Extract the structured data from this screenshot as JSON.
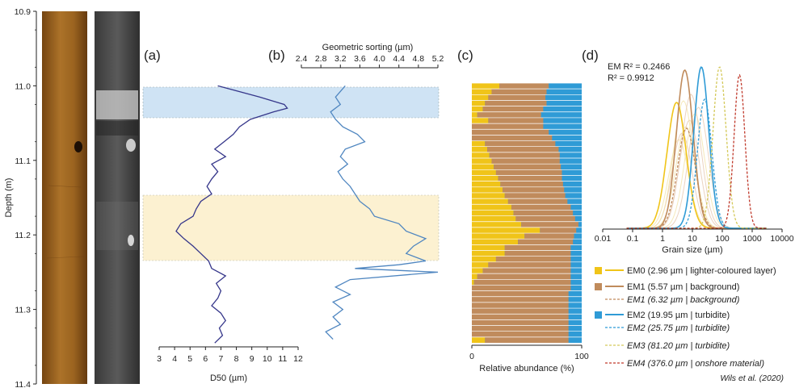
{
  "labels": {
    "a": "(a)",
    "b": "(b)",
    "c": "(c)",
    "d": "(d)"
  },
  "citation": "Wils et al. (2020)",
  "stats": {
    "em_r2": "EM R² = 0.2466",
    "r2": "R² = 0.9912"
  },
  "colors": {
    "d50": "#35368a",
    "sorting": "#4f86c0",
    "em0": "#f0c419",
    "em1": "#c08b5c",
    "em2": "#2f9bd6",
    "em3": "#d4c95a",
    "em4": "#c0392b",
    "blue_band": "#cfe3f4",
    "yellow_band": "#fcf1d1"
  },
  "chart_data": [
    {
      "type": "line",
      "panel": "a",
      "title": "",
      "xlabel": "D50 (µm)",
      "ylabel": "Depth (m)",
      "xlim": [
        3,
        12
      ],
      "ylim": [
        11.4,
        10.9
      ],
      "xticks": [
        3,
        4,
        5,
        6,
        7,
        8,
        9,
        10,
        11,
        12
      ],
      "yticks": [
        10.9,
        11.0,
        11.1,
        11.2,
        11.3,
        11.4
      ],
      "ytick_labels": [
        "10.9",
        "11.0",
        "11.1",
        "11.2",
        "11.3",
        "11.4"
      ],
      "highlight_bands": [
        {
          "from": 11.0,
          "to": 11.04,
          "color": "blue"
        },
        {
          "from": 11.145,
          "to": 11.235,
          "color": "yellow"
        }
      ],
      "series": [
        {
          "depth": [
            11.0,
            11.015,
            11.025,
            11.03,
            11.035,
            11.045,
            11.055,
            11.065,
            11.075,
            11.085,
            11.095,
            11.105,
            11.115,
            11.125,
            11.135,
            11.145,
            11.155,
            11.165,
            11.175,
            11.185,
            11.195,
            11.205,
            11.215,
            11.225,
            11.235,
            11.245,
            11.255,
            11.265,
            11.275,
            11.285,
            11.295,
            11.305,
            11.315,
            11.325,
            11.335,
            11.345
          ],
          "values": [
            6.8,
            9.5,
            11.1,
            11.3,
            10.4,
            8.9,
            8.2,
            7.8,
            7.2,
            6.6,
            7.3,
            6.4,
            6.8,
            6.4,
            6.1,
            6.4,
            5.7,
            5.4,
            5.2,
            4.4,
            4.1,
            4.6,
            5.2,
            5.7,
            6.2,
            6.4,
            7.3,
            6.7,
            7.0,
            6.8,
            6.4,
            7.0,
            7.3,
            6.9,
            7.1,
            6.6
          ]
        }
      ]
    },
    {
      "type": "line",
      "panel": "b",
      "title": "",
      "xlabel": "Geometric sorting (µm)",
      "xlim": [
        2.4,
        5.2
      ],
      "xticks": [
        2.4,
        2.8,
        3.2,
        3.6,
        4.0,
        4.4,
        4.8,
        5.2
      ],
      "xtick_labels": [
        "2.4",
        "2.8",
        "3.2",
        "3.6",
        "4.0",
        "4.4",
        "4.8",
        "5.2"
      ],
      "series": [
        {
          "depth": [
            11.0,
            11.015,
            11.025,
            11.035,
            11.045,
            11.055,
            11.065,
            11.075,
            11.085,
            11.095,
            11.105,
            11.115,
            11.125,
            11.135,
            11.145,
            11.155,
            11.165,
            11.175,
            11.185,
            11.195,
            11.205,
            11.215,
            11.225,
            11.235,
            11.24,
            11.245,
            11.25,
            11.26,
            11.27,
            11.28,
            11.29,
            11.3,
            11.31,
            11.32,
            11.33,
            11.34
          ],
          "values": [
            3.3,
            3.1,
            3.2,
            3.0,
            3.1,
            3.25,
            3.55,
            3.7,
            3.3,
            3.2,
            3.35,
            3.15,
            3.25,
            3.4,
            3.5,
            3.6,
            3.8,
            3.9,
            4.4,
            4.55,
            4.95,
            4.7,
            4.55,
            4.95,
            4.4,
            3.5,
            5.2,
            3.4,
            3.1,
            3.4,
            3.05,
            3.25,
            3.05,
            3.2,
            2.9,
            3.05
          ]
        }
      ]
    },
    {
      "type": "bar",
      "panel": "c",
      "orientation": "horizontal-stacked",
      "xlabel": "Relative abundance (%)",
      "xlim": [
        0,
        100
      ],
      "xticks": [
        0,
        100
      ],
      "series_names": [
        "EM0",
        "EM1",
        "EM2"
      ],
      "rows_em0": [
        25,
        18,
        15,
        12,
        10,
        5,
        15,
        0,
        0,
        0,
        12,
        14,
        16,
        18,
        20,
        22,
        24,
        26,
        28,
        30,
        33,
        36,
        38,
        40,
        45,
        62,
        48,
        42,
        30,
        30,
        22,
        15,
        10,
        5,
        2,
        0,
        0,
        0,
        0,
        0,
        0,
        0,
        0,
        0,
        12
      ],
      "rows_em1": [
        45,
        50,
        52,
        56,
        55,
        58,
        50,
        65,
        70,
        73,
        64,
        65,
        64,
        62,
        61,
        60,
        58,
        57,
        56,
        55,
        54,
        54,
        54,
        54,
        52,
        33,
        45,
        50,
        60,
        60,
        68,
        75,
        80,
        85,
        88,
        90,
        88,
        88,
        88,
        88,
        88,
        88,
        88,
        88,
        76
      ]
    },
    {
      "type": "line",
      "panel": "d",
      "scale": "log",
      "xlabel": "Grain size (µm)",
      "xlim": [
        0.01,
        10000
      ],
      "xticks": [
        0.01,
        0.1,
        1,
        10,
        100,
        1000,
        10000
      ],
      "xtick_labels": [
        "0.01",
        "0.1",
        "1",
        "10",
        "100",
        "1000",
        "10000"
      ],
      "series": [
        {
          "name": "EM0 (2.96 µm | lighter-coloured layer)",
          "mode": 2.96,
          "style": "solid",
          "color": "em0"
        },
        {
          "name": "EM1 (5.57 µm | background)",
          "mode": 5.57,
          "style": "solid",
          "color": "em1"
        },
        {
          "name": "EM1 (6.32 µm | background)",
          "mode": 6.32,
          "style": "dashed",
          "color": "em1"
        },
        {
          "name": "EM2 (19.95 µm | turbidite)",
          "mode": 19.95,
          "style": "solid",
          "color": "em2"
        },
        {
          "name": "EM2 (25.75 µm | turbidite)",
          "mode": 25.75,
          "style": "dashed",
          "color": "em2"
        },
        {
          "name": "EM3 (81.20 µm | turbidite)",
          "mode": 81.2,
          "style": "dashed",
          "color": "em3"
        },
        {
          "name": "EM4 (376.0 µm | onshore material)",
          "mode": 376.0,
          "style": "dashed",
          "color": "em4"
        }
      ]
    }
  ]
}
